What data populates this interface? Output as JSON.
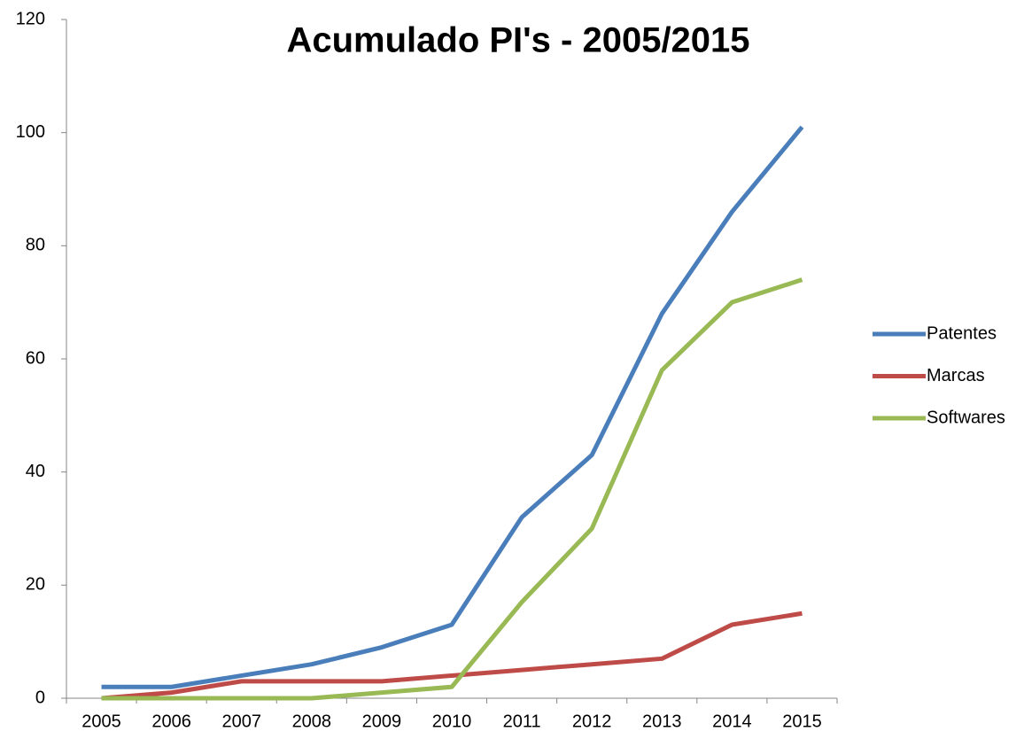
{
  "chart_data": {
    "type": "line",
    "title": "Acumulado PI's - 2005/2015",
    "categories": [
      "2005",
      "2006",
      "2007",
      "2008",
      "2009",
      "2010",
      "2011",
      "2012",
      "2013",
      "2014",
      "2015"
    ],
    "series": [
      {
        "name": "Patentes",
        "color": "#4a7ebb",
        "values": [
          2,
          2,
          4,
          6,
          9,
          13,
          32,
          43,
          68,
          86,
          101
        ]
      },
      {
        "name": "Marcas",
        "color": "#be4b48",
        "values": [
          0,
          1,
          3,
          3,
          3,
          4,
          5,
          6,
          7,
          13,
          15
        ]
      },
      {
        "name": "Softwares",
        "color": "#98b954",
        "values": [
          0,
          0,
          0,
          0,
          1,
          2,
          17,
          30,
          58,
          70,
          74
        ]
      }
    ],
    "ylim": [
      0,
      120
    ],
    "yticks": [
      0,
      20,
      40,
      60,
      80,
      100,
      120
    ],
    "grid": false,
    "legend": "right"
  }
}
